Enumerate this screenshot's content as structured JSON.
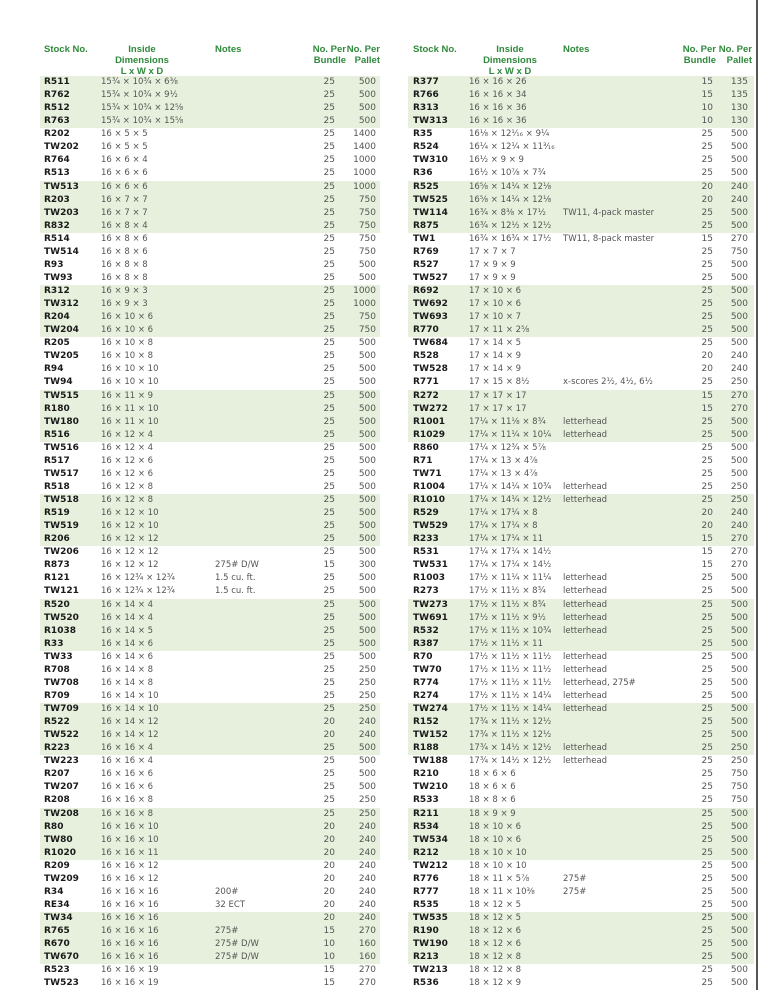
{
  "headers": {
    "stock": "Stock No.",
    "dims": "Inside Dimensions",
    "dims_sub": "L x W x D",
    "notes": "Notes",
    "bundle1": "No. Per",
    "bundle2": "Bundle",
    "pallet1": "No. Per",
    "pallet2": "Pallet"
  },
  "colors": {
    "header": "#2f8a3c",
    "shade": "#e6f0dc"
  },
  "left": [
    [
      "R511",
      "15¾ × 10¾ × 6⅜",
      "",
      "25",
      "500"
    ],
    [
      "R762",
      "15¾ × 10¾ × 9½",
      "",
      "25",
      "500"
    ],
    [
      "R512",
      "15¾ × 10¾ × 12⅝",
      "",
      "25",
      "500"
    ],
    [
      "R763",
      "15¾ × 10¾ × 15⅝",
      "",
      "25",
      "500"
    ],
    [
      "R202",
      "16 × 5 × 5",
      "",
      "25",
      "1400"
    ],
    [
      "TW202",
      "16 × 5 × 5",
      "",
      "25",
      "1400"
    ],
    [
      "R764",
      "16 × 6 × 4",
      "",
      "25",
      "1000"
    ],
    [
      "R513",
      "16 × 6 × 6",
      "",
      "25",
      "1000"
    ],
    [
      "TW513",
      "16 × 6 × 6",
      "",
      "25",
      "1000"
    ],
    [
      "R203",
      "16 × 7 × 7",
      "",
      "25",
      "750"
    ],
    [
      "TW203",
      "16 × 7 × 7",
      "",
      "25",
      "750"
    ],
    [
      "R832",
      "16 × 8 × 4",
      "",
      "25",
      "750"
    ],
    [
      "R514",
      "16 × 8 × 6",
      "",
      "25",
      "750"
    ],
    [
      "TW514",
      "16 × 8 × 6",
      "",
      "25",
      "750"
    ],
    [
      "R93",
      "16 × 8 × 8",
      "",
      "25",
      "500"
    ],
    [
      "TW93",
      "16 × 8 × 8",
      "",
      "25",
      "500"
    ],
    [
      "R312",
      "16 × 9 × 3",
      "",
      "25",
      "1000"
    ],
    [
      "TW312",
      "16 × 9 × 3",
      "",
      "25",
      "1000"
    ],
    [
      "R204",
      "16 × 10 × 6",
      "",
      "25",
      "750"
    ],
    [
      "TW204",
      "16 × 10 × 6",
      "",
      "25",
      "750"
    ],
    [
      "R205",
      "16 × 10 × 8",
      "",
      "25",
      "500"
    ],
    [
      "TW205",
      "16 × 10 × 8",
      "",
      "25",
      "500"
    ],
    [
      "R94",
      "16 × 10 × 10",
      "",
      "25",
      "500"
    ],
    [
      "TW94",
      "16 × 10 × 10",
      "",
      "25",
      "500"
    ],
    [
      "TW515",
      "16 × 11 × 9",
      "",
      "25",
      "500"
    ],
    [
      "R180",
      "16 × 11 × 10",
      "",
      "25",
      "500"
    ],
    [
      "TW180",
      "16 × 11 × 10",
      "",
      "25",
      "500"
    ],
    [
      "R516",
      "16 × 12 × 4",
      "",
      "25",
      "500"
    ],
    [
      "TW516",
      "16 × 12 × 4",
      "",
      "25",
      "500"
    ],
    [
      "R517",
      "16 × 12 × 6",
      "",
      "25",
      "500"
    ],
    [
      "TW517",
      "16 × 12 × 6",
      "",
      "25",
      "500"
    ],
    [
      "R518",
      "16 × 12 × 8",
      "",
      "25",
      "500"
    ],
    [
      "TW518",
      "16 × 12 × 8",
      "",
      "25",
      "500"
    ],
    [
      "R519",
      "16 × 12 × 10",
      "",
      "25",
      "500"
    ],
    [
      "TW519",
      "16 × 12 × 10",
      "",
      "25",
      "500"
    ],
    [
      "R206",
      "16 × 12 × 12",
      "",
      "25",
      "500"
    ],
    [
      "TW206",
      "16 × 12 × 12",
      "",
      "25",
      "500"
    ],
    [
      "R873",
      "16 × 12 × 12",
      "275# D/W",
      "15",
      "300"
    ],
    [
      "R121",
      "16 × 12¾ × 12¾",
      "1.5 cu. ft.",
      "25",
      "500"
    ],
    [
      "TW121",
      "16 × 12¾ × 12¾",
      "1.5 cu. ft.",
      "25",
      "500"
    ],
    [
      "R520",
      "16 × 14 × 4",
      "",
      "25",
      "500"
    ],
    [
      "TW520",
      "16 × 14 × 4",
      "",
      "25",
      "500"
    ],
    [
      "R1038",
      "16 × 14 × 5",
      "",
      "25",
      "500"
    ],
    [
      "R33",
      "16 × 14 × 6",
      "",
      "25",
      "500"
    ],
    [
      "TW33",
      "16 × 14 × 6",
      "",
      "25",
      "500"
    ],
    [
      "R708",
      "16 × 14 × 8",
      "",
      "25",
      "250"
    ],
    [
      "TW708",
      "16 × 14 × 8",
      "",
      "25",
      "250"
    ],
    [
      "R709",
      "16 × 14 × 10",
      "",
      "25",
      "250"
    ],
    [
      "TW709",
      "16 × 14 × 10",
      "",
      "25",
      "250"
    ],
    [
      "R522",
      "16 × 14 × 12",
      "",
      "20",
      "240"
    ],
    [
      "TW522",
      "16 × 14 × 12",
      "",
      "20",
      "240"
    ],
    [
      "R223",
      "16 × 16 × 4",
      "",
      "25",
      "500"
    ],
    [
      "TW223",
      "16 × 16 × 4",
      "",
      "25",
      "500"
    ],
    [
      "R207",
      "16 × 16 × 6",
      "",
      "25",
      "500"
    ],
    [
      "TW207",
      "16 × 16 × 6",
      "",
      "25",
      "500"
    ],
    [
      "R208",
      "16 × 16 × 8",
      "",
      "25",
      "250"
    ],
    [
      "TW208",
      "16 × 16 × 8",
      "",
      "25",
      "250"
    ],
    [
      "R80",
      "16 × 16 × 10",
      "",
      "20",
      "240"
    ],
    [
      "TW80",
      "16 × 16 × 10",
      "",
      "20",
      "240"
    ],
    [
      "R1020",
      "16 × 16 × 11",
      "",
      "20",
      "240"
    ],
    [
      "R209",
      "16 × 16 × 12",
      "",
      "20",
      "240"
    ],
    [
      "TW209",
      "16 × 16 × 12",
      "",
      "20",
      "240"
    ],
    [
      "R34",
      "16 × 16 × 16",
      "200#",
      "20",
      "240"
    ],
    [
      "RE34",
      "16 × 16 × 16",
      "32 ECT",
      "20",
      "240"
    ],
    [
      "TW34",
      "16 × 16 × 16",
      "",
      "20",
      "240"
    ],
    [
      "R765",
      "16 × 16 × 16",
      "275#",
      "15",
      "270"
    ],
    [
      "R670",
      "16 × 16 × 16",
      "275# D/W",
      "10",
      "160"
    ],
    [
      "TW670",
      "16 × 16 × 16",
      "275# D/W",
      "10",
      "160"
    ],
    [
      "R523",
      "16 × 16 × 19",
      "",
      "15",
      "270"
    ],
    [
      "TW523",
      "16 × 16 × 19",
      "",
      "15",
      "270"
    ]
  ],
  "right": [
    [
      "R377",
      "16 × 16 × 26",
      "",
      "15",
      "135"
    ],
    [
      "R766",
      "16 × 16 × 34",
      "",
      "15",
      "135"
    ],
    [
      "R313",
      "16 × 16 × 36",
      "",
      "10",
      "130"
    ],
    [
      "TW313",
      "16 × 16 × 36",
      "",
      "10",
      "130"
    ],
    [
      "R35",
      "16⅛ × 12¹⁄₁₆ × 9¼",
      "",
      "25",
      "500"
    ],
    [
      "R524",
      "16¼ × 12¼ × 11³⁄₁₆",
      "",
      "25",
      "500"
    ],
    [
      "TW310",
      "16½ × 9 × 9",
      "",
      "25",
      "500"
    ],
    [
      "R36",
      "16½ × 10⅞ × 7¾",
      "",
      "25",
      "500"
    ],
    [
      "R525",
      "16⅝ × 14¼ × 12⅛",
      "",
      "20",
      "240"
    ],
    [
      "TW525",
      "16⅝ × 14¼ × 12⅛",
      "",
      "20",
      "240"
    ],
    [
      "TW114",
      "16¾ × 8⅜ × 17½",
      "TW11, 4-pack master",
      "25",
      "500"
    ],
    [
      "R875",
      "16¾ × 12½ × 12½",
      "",
      "25",
      "500"
    ],
    [
      "TW1",
      "16¾ × 16¾ × 17½",
      "TW11, 8-pack master",
      "15",
      "270"
    ],
    [
      "R769",
      "17 × 7 × 7",
      "",
      "25",
      "750"
    ],
    [
      "R527",
      "17 × 9 × 9",
      "",
      "25",
      "500"
    ],
    [
      "TW527",
      "17 × 9 × 9",
      "",
      "25",
      "500"
    ],
    [
      "R692",
      "17 × 10 × 6",
      "",
      "25",
      "500"
    ],
    [
      "TW692",
      "17 × 10 × 6",
      "",
      "25",
      "500"
    ],
    [
      "TW693",
      "17 × 10 × 7",
      "",
      "25",
      "500"
    ],
    [
      "R770",
      "17 × 11 × 2⅝",
      "",
      "25",
      "500"
    ],
    [
      "TW684",
      "17 × 14 × 5",
      "",
      "25",
      "500"
    ],
    [
      "R528",
      "17 × 14 × 9",
      "",
      "20",
      "240"
    ],
    [
      "TW528",
      "17 × 14 × 9",
      "",
      "20",
      "240"
    ],
    [
      "R771",
      "17 × 15 × 8½",
      "x-scores 2½, 4½, 6½",
      "25",
      "250"
    ],
    [
      "R272",
      "17 × 17 × 17",
      "",
      "15",
      "270"
    ],
    [
      "TW272",
      "17 × 17 × 17",
      "",
      "15",
      "270"
    ],
    [
      "R1001",
      "17¼ × 11⅛ × 8¾",
      "letterhead",
      "25",
      "500"
    ],
    [
      "R1029",
      "17¼ × 11¼ × 10¼",
      "letterhead",
      "25",
      "500"
    ],
    [
      "R860",
      "17¼ × 12¾ × 5⅞",
      "",
      "25",
      "500"
    ],
    [
      "R71",
      "17¼ × 13 × 4⅞",
      "",
      "25",
      "500"
    ],
    [
      "TW71",
      "17¼ × 13 × 4⅞",
      "",
      "25",
      "500"
    ],
    [
      "R1004",
      "17¼ × 14¼ × 10¾",
      "letterhead",
      "25",
      "250"
    ],
    [
      "R1010",
      "17¼ × 14¼ × 12½",
      "letterhead",
      "25",
      "250"
    ],
    [
      "R529",
      "17¼ × 17¼ × 8",
      "",
      "20",
      "240"
    ],
    [
      "TW529",
      "17¼ × 17¼ × 8",
      "",
      "20",
      "240"
    ],
    [
      "R233",
      "17¼ × 17¼ × 11",
      "",
      "15",
      "270"
    ],
    [
      "R531",
      "17¼ × 17¼ × 14½",
      "",
      "15",
      "270"
    ],
    [
      "TW531",
      "17¼ × 17¼ × 14½",
      "",
      "15",
      "270"
    ],
    [
      "R1003",
      "17½ × 11¼ × 11¼",
      "letterhead",
      "25",
      "500"
    ],
    [
      "R273",
      "17½ × 11½ × 8¾",
      "letterhead",
      "25",
      "500"
    ],
    [
      "TW273",
      "17½ × 11½ × 8¾",
      "letterhead",
      "25",
      "500"
    ],
    [
      "TW691",
      "17½ × 11½ × 9½",
      "letterhead",
      "25",
      "500"
    ],
    [
      "R532",
      "17½ × 11½ × 10¾",
      "letterhead",
      "25",
      "500"
    ],
    [
      "R387",
      "17½ × 11½ × 11",
      "",
      "25",
      "500"
    ],
    [
      "R70",
      "17½ × 11½ × 11½",
      "letterhead",
      "25",
      "500"
    ],
    [
      "TW70",
      "17½ × 11½ × 11½",
      "letterhead",
      "25",
      "500"
    ],
    [
      "R774",
      "17½ × 11½ × 11½",
      "letterhead, 275#",
      "25",
      "500"
    ],
    [
      "R274",
      "17½ × 11½ × 14¼",
      "letterhead",
      "25",
      "500"
    ],
    [
      "TW274",
      "17½ × 11½ × 14¼",
      "letterhead",
      "25",
      "500"
    ],
    [
      "R152",
      "17¾ × 11½ × 12½",
      "",
      "25",
      "500"
    ],
    [
      "TW152",
      "17¾ × 11½ × 12½",
      "",
      "25",
      "500"
    ],
    [
      "R188",
      "17¾ × 14½ × 12½",
      "letterhead",
      "25",
      "250"
    ],
    [
      "TW188",
      "17¾ × 14½ × 12½",
      "letterhead",
      "25",
      "250"
    ],
    [
      "R210",
      "18 × 6 × 6",
      "",
      "25",
      "750"
    ],
    [
      "TW210",
      "18 × 6 × 6",
      "",
      "25",
      "750"
    ],
    [
      "R533",
      "18 × 8 × 6",
      "",
      "25",
      "750"
    ],
    [
      "R211",
      "18 × 9 × 9",
      "",
      "25",
      "500"
    ],
    [
      "R534",
      "18 × 10 × 6",
      "",
      "25",
      "500"
    ],
    [
      "TW534",
      "18 × 10 × 6",
      "",
      "25",
      "500"
    ],
    [
      "R212",
      "18 × 10 × 10",
      "",
      "25",
      "500"
    ],
    [
      "TW212",
      "18 × 10 × 10",
      "",
      "25",
      "500"
    ],
    [
      "R776",
      "18 × 11 × 5⅞",
      "275#",
      "25",
      "500"
    ],
    [
      "R777",
      "18 × 11 × 10⅜",
      "275#",
      "25",
      "500"
    ],
    [
      "R535",
      "18 × 12 × 5",
      "",
      "25",
      "500"
    ],
    [
      "TW535",
      "18 × 12 × 5",
      "",
      "25",
      "500"
    ],
    [
      "R190",
      "18 × 12 × 6",
      "",
      "25",
      "500"
    ],
    [
      "TW190",
      "18 × 12 × 6",
      "",
      "25",
      "500"
    ],
    [
      "R213",
      "18 × 12 × 8",
      "",
      "25",
      "500"
    ],
    [
      "TW213",
      "18 × 12 × 8",
      "",
      "25",
      "500"
    ],
    [
      "R536",
      "18 × 12 × 9",
      "",
      "25",
      "500"
    ]
  ]
}
